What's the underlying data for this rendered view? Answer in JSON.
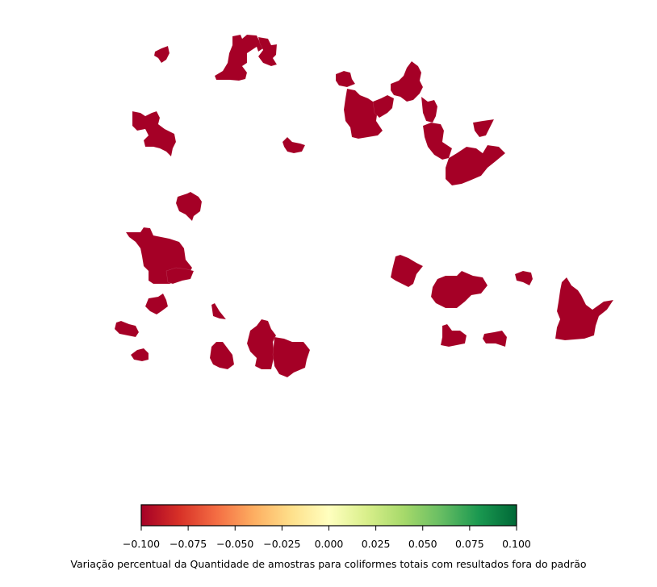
{
  "map": {
    "fill_color": "#a50026",
    "region_count": 29
  },
  "colorbar": {
    "colormap": "RdYlGn",
    "min": -0.1,
    "max": 0.1,
    "ticks": [
      "−0.100",
      "−0.075",
      "−0.050",
      "−0.025",
      "0.000",
      "0.025",
      "0.050",
      "0.075",
      "0.100"
    ],
    "stops": [
      "#a50026",
      "#d73027",
      "#f46d43",
      "#fdae61",
      "#fee08b",
      "#ffffbf",
      "#d9ef8b",
      "#a6d96a",
      "#66bd63",
      "#1a9850",
      "#006837"
    ],
    "label": "Variação percentual da Quantidade de amostras para coliformes totais com resultados fora do padrão"
  }
}
